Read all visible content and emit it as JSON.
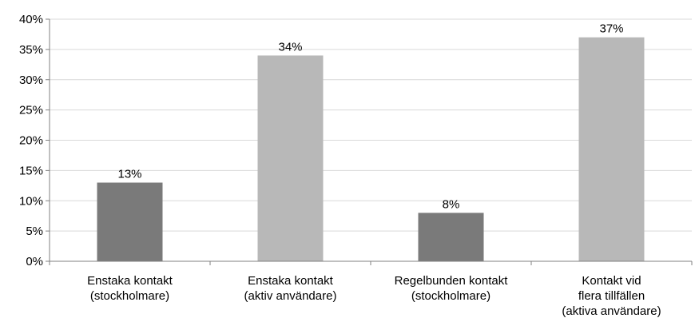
{
  "chart_data": {
    "type": "bar",
    "categories": [
      [
        "Enstaka kontakt",
        "(stockholmare)"
      ],
      [
        "Enstaka kontakt",
        "(aktiv användare)"
      ],
      [
        "Regelbunden kontakt",
        "(stockholmare)"
      ],
      [
        "Kontakt vid",
        "flera tillfällen",
        "(aktiva användare)"
      ]
    ],
    "values": [
      13,
      34,
      8,
      37
    ],
    "value_labels": [
      "13%",
      "34%",
      "8%",
      "37%"
    ],
    "y_ticks": [
      "0%",
      "5%",
      "10%",
      "15%",
      "20%",
      "25%",
      "30%",
      "35%",
      "40%"
    ],
    "ylim": [
      0,
      40
    ],
    "grid": true,
    "legend": "none",
    "colors": {
      "dark": "#7a7a7a",
      "light": "#b8b8b8",
      "bars": [
        "#7a7a7a",
        "#b8b8b8",
        "#7a7a7a",
        "#b8b8b8"
      ]
    }
  }
}
